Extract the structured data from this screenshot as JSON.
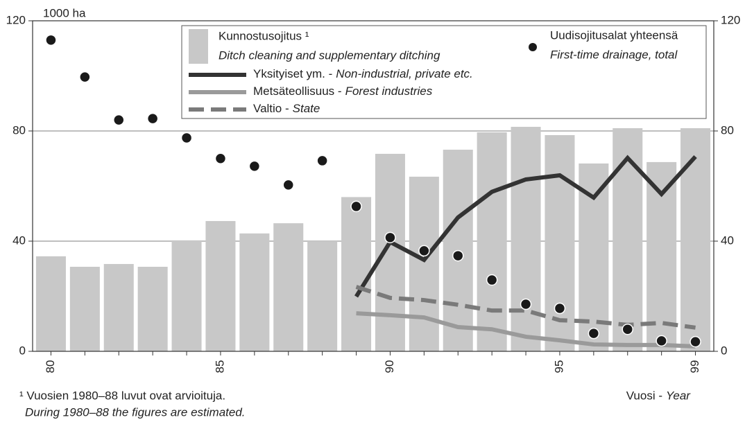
{
  "chart_data": {
    "type": "bar",
    "unit_label": "1000 ha",
    "categories": [
      "80",
      null,
      null,
      null,
      null,
      "85",
      null,
      null,
      null,
      null,
      "90",
      null,
      null,
      null,
      null,
      "95",
      null,
      null,
      null,
      "99"
    ],
    "xlabel": "Vuosi -",
    "xlabel_en": "Year",
    "footnote": "¹ Vuosien 1980–88 luvut ovat arvioituja.",
    "footnote_en": "During 1980–88 the figures are estimated.",
    "ylim": [
      0,
      120
    ],
    "yticks": [
      0,
      40,
      80,
      120
    ],
    "y2lim": [
      0,
      120
    ],
    "y2ticks": [
      0,
      40,
      80,
      120
    ],
    "grid": true,
    "series": [
      {
        "type": "bar",
        "name": "Kunnostusojitus ¹",
        "name_en": "Ditch cleaning and supplementary ditching",
        "color": "#c8c8c8",
        "values": [
          34.5,
          30.7,
          31.7,
          30.7,
          40.3,
          47.3,
          42.8,
          46.5,
          40,
          56,
          71.7,
          63.4,
          73.2,
          79.5,
          81.5,
          78.5,
          68.2,
          81,
          68.7,
          81
        ]
      },
      {
        "type": "scatter",
        "name": "Uudisojitusalat yhteensä",
        "name_en": "First-time drainage, total",
        "color": "#1a1a1a",
        "values": [
          113,
          99.6,
          84,
          84.5,
          77.5,
          70,
          67.2,
          60.4,
          69.2,
          52.6,
          41.3,
          36.5,
          34.7,
          25.9,
          17.1,
          15.6,
          6.5,
          8,
          3.8,
          3.5
        ]
      },
      {
        "type": "line",
        "name": "Yksityiset ym. -",
        "name_en": "Non-industrial, private etc.",
        "color": "#333333",
        "dashed": false,
        "values": [
          null,
          null,
          null,
          null,
          null,
          null,
          null,
          null,
          null,
          19.9,
          39.7,
          33.2,
          48.6,
          57.9,
          62.4,
          63.9,
          55.8,
          70.2,
          57.1,
          70.7
        ]
      },
      {
        "type": "line",
        "name": "Metsäteollisuus -",
        "name_en": "Forest industries",
        "color": "#9a9a9a",
        "dashed": false,
        "values": [
          null,
          null,
          null,
          null,
          null,
          null,
          null,
          null,
          null,
          13.8,
          13.1,
          12.3,
          8.8,
          8,
          5.3,
          4,
          2.5,
          2.3,
          2.3,
          1.8
        ]
      },
      {
        "type": "line",
        "name": "Valtio -",
        "name_en": "State",
        "color": "#7a7a7a",
        "dashed": true,
        "values": [
          null,
          null,
          null,
          null,
          null,
          null,
          null,
          null,
          null,
          23.4,
          19.4,
          18.6,
          16.9,
          14.8,
          14.8,
          11.3,
          10.8,
          9.6,
          10.3,
          8.6
        ]
      }
    ]
  }
}
